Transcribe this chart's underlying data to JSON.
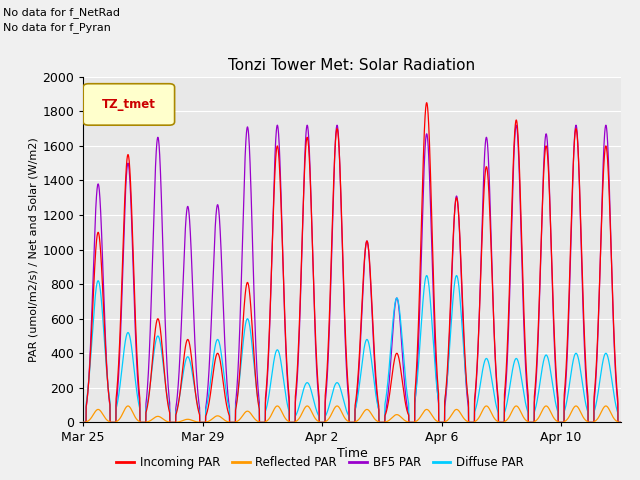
{
  "title": "Tonzi Tower Met: Solar Radiation",
  "ylabel": "PAR (umol/m2/s) / Net and Solar (W/m2)",
  "xlabel": "Time",
  "ylim": [
    0,
    2000
  ],
  "bg_color": "#e8e8e8",
  "fig_bg_color": "#f0f0f0",
  "legend_label": "TZ_tmet",
  "note1": "No data for f_NetRad",
  "note2": "No data for f_Pyran",
  "xtick_labels": [
    "Mar 25",
    "Mar 29",
    "Apr 2",
    "Apr 6",
    "Apr 10"
  ],
  "xtick_positions": [
    0,
    4,
    8,
    12,
    16
  ],
  "incoming_par_color": "#ff0000",
  "reflected_par_color": "#ff9900",
  "bf5_par_color": "#9900cc",
  "diffuse_par_color": "#00ccff",
  "series_names": [
    "Incoming PAR",
    "Reflected PAR",
    "BF5 PAR",
    "Diffuse PAR"
  ],
  "num_days": 18,
  "day_peaks_incoming": [
    1100,
    1550,
    600,
    480,
    400,
    810,
    1600,
    1650,
    1700,
    1050,
    400,
    1850,
    1300,
    1480,
    1750,
    1600,
    1700,
    1600
  ],
  "day_peaks_reflected": [
    75,
    95,
    35,
    18,
    38,
    65,
    95,
    95,
    95,
    75,
    45,
    75,
    75,
    95,
    95,
    95,
    95,
    95
  ],
  "day_peaks_bf5": [
    1380,
    1500,
    1650,
    1250,
    1260,
    1710,
    1720,
    1720,
    1720,
    1050,
    720,
    1670,
    1310,
    1650,
    1720,
    1670,
    1720,
    1720
  ],
  "day_peaks_diffuse": [
    820,
    520,
    500,
    380,
    480,
    600,
    420,
    230,
    230,
    480,
    720,
    850,
    850,
    370,
    370,
    390,
    400,
    400
  ]
}
